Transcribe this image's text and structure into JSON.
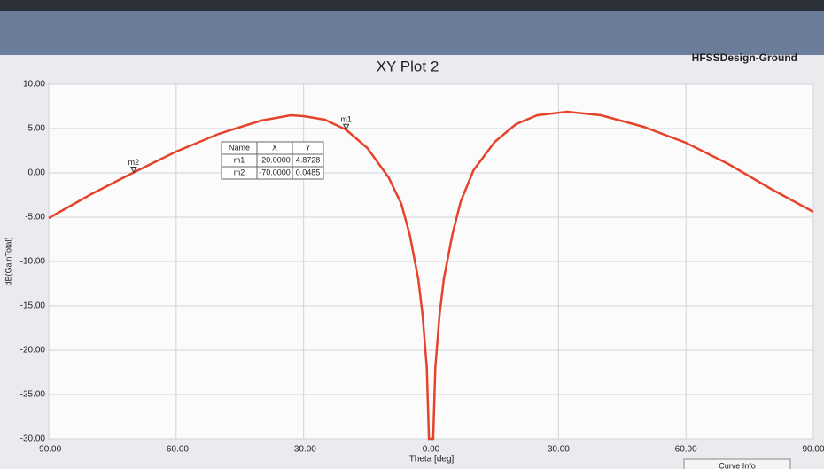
{
  "chart_data": {
    "type": "line",
    "title": "XY Plot 2",
    "subtitle": "HFSSDesign-Ground",
    "x_label": "Theta [deg]",
    "y_label": "dB(GainTotal)",
    "x": [
      -90,
      -80,
      -70,
      -60,
      -50,
      -40,
      -33,
      -30,
      -25,
      -20,
      -15,
      -10,
      -7,
      -5,
      -3,
      -2,
      -1,
      -0.5,
      0.5,
      1,
      2,
      3,
      5,
      7,
      10,
      15,
      20,
      25,
      32,
      40,
      50,
      60,
      70,
      80,
      90
    ],
    "series": [
      {
        "name": "dB(GainTotal)",
        "color": "#e5432a",
        "values": [
          -5.1,
          -2.4,
          0.05,
          2.4,
          4.4,
          5.9,
          6.5,
          6.4,
          6.0,
          4.87,
          2.8,
          -0.5,
          -3.5,
          -7,
          -12,
          -16,
          -22,
          -30,
          -30,
          -22,
          -16,
          -12,
          -7,
          -3.2,
          0.3,
          3.5,
          5.5,
          6.5,
          6.9,
          6.5,
          5.2,
          3.4,
          1.0,
          -1.8,
          -4.4
        ]
      }
    ],
    "xlim": [
      -90,
      90
    ],
    "ylim": [
      -30,
      10
    ],
    "xticks": [
      {
        "value": -90,
        "label": "-90.00"
      },
      {
        "value": -60,
        "label": "-60.00"
      },
      {
        "value": -30,
        "label": "-30.00"
      },
      {
        "value": 0,
        "label": "0.00"
      },
      {
        "value": 30,
        "label": "30.00"
      },
      {
        "value": 60,
        "label": "60.00"
      },
      {
        "value": 90,
        "label": "90.00"
      }
    ],
    "yticks": [
      {
        "value": -30,
        "label": "-30.00"
      },
      {
        "value": -25,
        "label": "-25.00"
      },
      {
        "value": -20,
        "label": "-20.00"
      },
      {
        "value": -15,
        "label": "-15.00"
      },
      {
        "value": -10,
        "label": "-10.00"
      },
      {
        "value": -5,
        "label": "-5.00"
      },
      {
        "value": 0,
        "label": "0.00"
      },
      {
        "value": 5,
        "label": "5.00"
      },
      {
        "value": 10,
        "label": "10.00"
      }
    ],
    "grid": true,
    "markers": [
      {
        "name": "m1",
        "x": -20,
        "y": 4.8728
      },
      {
        "name": "m2",
        "x": -70,
        "y": 0.0485
      }
    ],
    "marker_table": {
      "columns": [
        "Name",
        "X",
        "Y"
      ],
      "rows": [
        [
          "m1",
          "-20.0000",
          "4.8728"
        ],
        [
          "m2",
          "-70.0000",
          "0.0485"
        ]
      ]
    },
    "curve_info": "Curve Info"
  }
}
